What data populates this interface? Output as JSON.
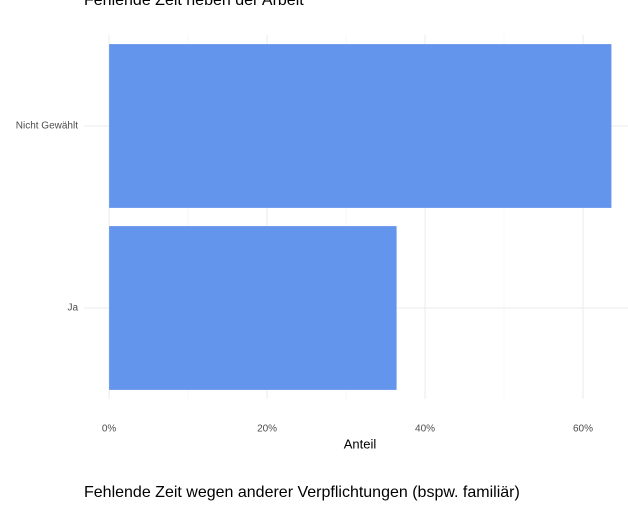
{
  "chart_data": [
    {
      "type": "barh",
      "title": "Fehlende Zeit neben der Arbeit",
      "categories": [
        "Nicht Gewählt",
        "Ja"
      ],
      "values": [
        63.6,
        36.4
      ],
      "color": "#6495ed",
      "xlabel": "Anteil",
      "xlim": [
        -3.18,
        65.7
      ],
      "xticks": [
        {
          "value": 0,
          "label": "0%"
        },
        {
          "value": 20,
          "label": "20%"
        },
        {
          "value": 40,
          "label": "40%"
        },
        {
          "value": 60,
          "label": "60%"
        }
      ],
      "minor_xticks": [
        10,
        30,
        50
      ],
      "grid": true
    },
    {
      "type": "barh",
      "title": "Fehlende Zeit wegen anderer Verpflichtungen (bspw. familiär)"
    }
  ]
}
